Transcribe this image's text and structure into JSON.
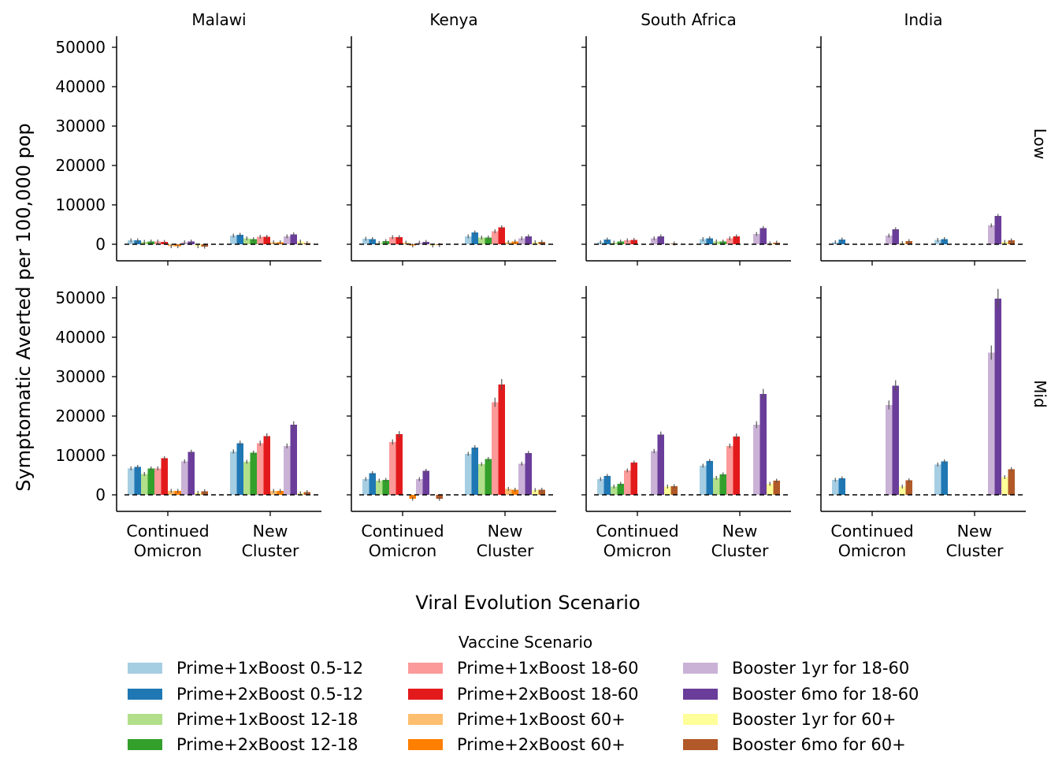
{
  "chart_data": {
    "type": "bar",
    "ylabel": "Symptomatic Averted per 100,000 pop",
    "xlabel": "Viral Evolution Scenario",
    "columns": [
      "Malawi",
      "Kenya",
      "South Africa",
      "India"
    ],
    "rows": [
      "Low",
      "Mid"
    ],
    "categories": [
      "Continued\nOmicron",
      "New\nCluster"
    ],
    "ylim": [
      -4000,
      53000
    ],
    "yticks": [
      0,
      10000,
      20000,
      30000,
      40000,
      50000
    ],
    "reference_line": 0,
    "legend": {
      "title": "Vaccine Scenario",
      "placement": "bottom-center",
      "columns": 3
    },
    "series": [
      {
        "name": "Prime+1xBoost 0.5-12",
        "color": "#a6cee3"
      },
      {
        "name": "Prime+2xBoost 0.5-12",
        "color": "#1f78b4"
      },
      {
        "name": "Prime+1xBoost 12-18",
        "color": "#b2df8a"
      },
      {
        "name": "Prime+2xBoost 12-18",
        "color": "#33a02c"
      },
      {
        "name": "Prime+1xBoost 18-60",
        "color": "#fb9a99"
      },
      {
        "name": "Prime+2xBoost 18-60",
        "color": "#e31a1c"
      },
      {
        "name": "Prime+1xBoost 60+",
        "color": "#fdbf6f"
      },
      {
        "name": "Prime+2xBoost 60+",
        "color": "#ff7f00"
      },
      {
        "name": "Booster 1yr for 18-60",
        "color": "#cab2d6"
      },
      {
        "name": "Booster 6mo for 18-60",
        "color": "#6a3d9a"
      },
      {
        "name": "Booster 1yr for 60+",
        "color": "#ffff99"
      },
      {
        "name": "Booster 6mo for 60+",
        "color": "#b15928"
      }
    ],
    "panels": [
      {
        "row": "Low",
        "column": "Malawi",
        "values": [
          [
            1000,
            1000,
            600,
            700,
            700,
            600,
            -500,
            -500,
            500,
            700,
            -500,
            -600
          ],
          [
            2200,
            2400,
            1500,
            1300,
            1900,
            1900,
            500,
            500,
            2000,
            2500,
            700,
            300
          ]
        ]
      },
      {
        "row": "Low",
        "column": "Kenya",
        "values": [
          [
            1400,
            1300,
            300,
            800,
            1800,
            1800,
            400,
            -300,
            400,
            600,
            -300,
            -200
          ],
          [
            2000,
            3000,
            1700,
            1700,
            3300,
            4300,
            500,
            700,
            1500,
            2000,
            500,
            600
          ]
        ]
      },
      {
        "row": "Low",
        "column": "South Africa",
        "values": [
          [
            500,
            1200,
            400,
            700,
            1000,
            1100,
            0,
            0,
            1500,
            2000,
            0,
            200
          ],
          [
            1300,
            1500,
            700,
            700,
            1500,
            2000,
            0,
            0,
            2600,
            4100,
            200,
            400
          ]
        ]
      },
      {
        "row": "Low",
        "column": "India",
        "values": [
          [
            500,
            1200,
            0,
            0,
            0,
            0,
            0,
            0,
            2200,
            3800,
            300,
            800
          ],
          [
            1100,
            1300,
            0,
            0,
            0,
            0,
            0,
            0,
            4800,
            7200,
            600,
            1000
          ]
        ]
      },
      {
        "row": "Mid",
        "column": "Malawi",
        "values": [
          [
            6700,
            7100,
            5300,
            6700,
            6700,
            9300,
            1000,
            1000,
            8500,
            10900,
            500,
            900
          ],
          [
            11000,
            13100,
            8400,
            10700,
            13100,
            14900,
            1000,
            1000,
            12400,
            17800,
            400,
            700
          ]
        ]
      },
      {
        "row": "Mid",
        "column": "Kenya",
        "values": [
          [
            4000,
            5500,
            3600,
            3800,
            13400,
            15400,
            0,
            -1000,
            4000,
            6100,
            0,
            -1000
          ],
          [
            10400,
            12000,
            7800,
            9100,
            23500,
            28000,
            1500,
            1300,
            7900,
            10600,
            1200,
            1300
          ]
        ]
      },
      {
        "row": "Mid",
        "column": "South Africa",
        "values": [
          [
            4000,
            4800,
            2100,
            2800,
            6200,
            8200,
            0,
            0,
            11100,
            15300,
            2100,
            2200
          ],
          [
            7400,
            8600,
            4300,
            5200,
            12400,
            14800,
            0,
            0,
            17800,
            25600,
            2800,
            3600
          ]
        ]
      },
      {
        "row": "Mid",
        "column": "India",
        "values": [
          [
            3800,
            4200,
            0,
            0,
            0,
            0,
            0,
            0,
            22800,
            27700,
            2100,
            3700
          ],
          [
            7700,
            8500,
            0,
            0,
            0,
            0,
            0,
            0,
            36100,
            49800,
            4500,
            6500
          ]
        ]
      }
    ]
  }
}
